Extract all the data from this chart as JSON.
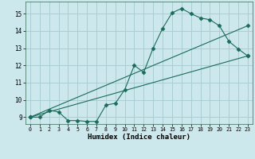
{
  "title": "",
  "xlabel": "Humidex (Indice chaleur)",
  "bg_color": "#cce8ec",
  "grid_color": "#aacdd4",
  "line_color": "#1a6b5a",
  "xlim": [
    -0.5,
    23.5
  ],
  "ylim": [
    8.6,
    15.7
  ],
  "yticks": [
    9,
    10,
    11,
    12,
    13,
    14,
    15
  ],
  "xticks": [
    0,
    1,
    2,
    3,
    4,
    5,
    6,
    7,
    8,
    9,
    10,
    11,
    12,
    13,
    14,
    15,
    16,
    17,
    18,
    19,
    20,
    21,
    22,
    23
  ],
  "line1_x": [
    0,
    1,
    2,
    3,
    4,
    5,
    6,
    7,
    8,
    9,
    10,
    11,
    12,
    13,
    14,
    15,
    16,
    17,
    18,
    19,
    20,
    21,
    22,
    23
  ],
  "line1_y": [
    9.0,
    9.0,
    9.4,
    9.3,
    8.8,
    8.8,
    8.75,
    8.75,
    9.7,
    9.8,
    10.6,
    12.0,
    11.6,
    13.0,
    14.15,
    15.05,
    15.3,
    15.0,
    14.75,
    14.65,
    14.3,
    13.4,
    12.95,
    12.55
  ],
  "line2_x": [
    0,
    23
  ],
  "line2_y": [
    9.0,
    12.55
  ],
  "line3_x": [
    0,
    23
  ],
  "line3_y": [
    9.0,
    14.3
  ],
  "markersize": 2.5
}
